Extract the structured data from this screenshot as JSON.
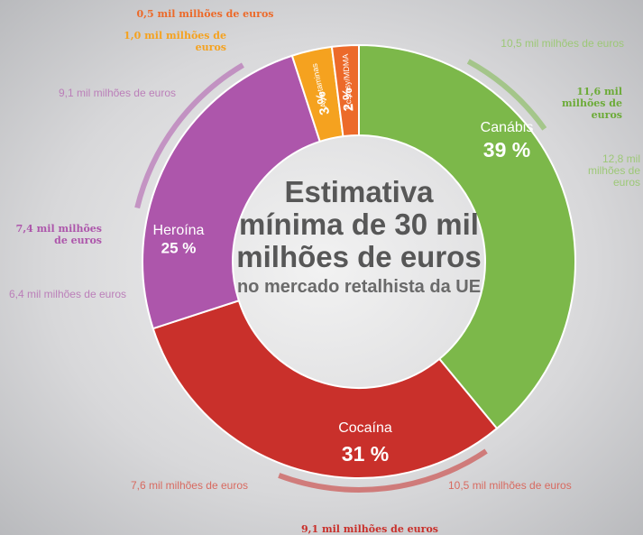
{
  "chart_data": {
    "type": "donut",
    "title": "Estimativa mínima de 30 mil milhões de euros",
    "subtitle": "no mercado retalhista da UE",
    "categories": [
      "Canábis",
      "Cocaína",
      "Heroína",
      "Anfetaminas",
      "Ecstasy/MDMA"
    ],
    "values": [
      39,
      31,
      25,
      3,
      2
    ],
    "value_labels": [
      "39 %",
      "31 %",
      "25 %",
      "3 %",
      "2 %"
    ],
    "colors": [
      "#7cb84a",
      "#c9302b",
      "#ad56ab",
      "#f5a21f",
      "#ec6a2a"
    ],
    "range_labels": [
      [
        "10,5 mil milhões de euros",
        "11,6 mil milhões de euros",
        "12,8 mil milhões de euros"
      ],
      [
        "7,6 mil milhões de euros",
        "9,1 mil milhões de euros",
        "10,5 mil milhões de euros"
      ],
      [
        "9,1 mil milhões de euros",
        "7,4 mil milhões de euros",
        "6,4 mil milhões de euros"
      ],
      [
        "1,0 mil milhões de euros"
      ],
      [
        "0,5 mil milhões de euros"
      ]
    ]
  }
}
